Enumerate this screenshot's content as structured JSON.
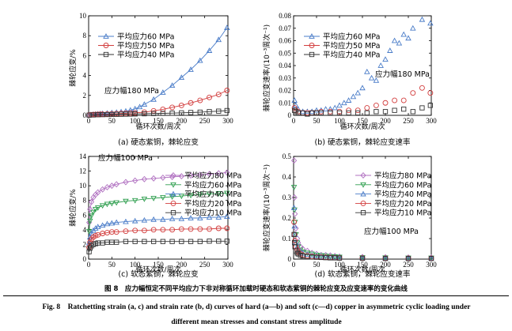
{
  "colors": {
    "blue": "#4a7cc8",
    "red": "#d23c3c",
    "black": "#333333",
    "purple": "#b070c0",
    "green": "#2e9e4e"
  },
  "figure": {
    "caption_cn": "图 8　应力幅恒定不同平均应力下非对称循环加载时硬态和软态紫铜的棘轮应变及应变速率的变化曲线",
    "caption_en_line1": "Fig. 8　Ratchetting strain (a, c) and strain rate (b, d) curves of hard (a—b) and soft (c—d) copper in asymmetric cyclic loading under",
    "caption_en_line2": "different mean stresses and constant stress amplitude"
  },
  "chart_data": [
    {
      "id": "a",
      "type": "line",
      "caption": "(a) 硬态紫铜，棘轮应变",
      "xlabel": "循环次数/周次",
      "ylabel": "棘轮应变/%",
      "xlim": [
        0,
        300
      ],
      "ylim": [
        0,
        10
      ],
      "xticks": [
        0,
        50,
        100,
        150,
        200,
        250,
        300
      ],
      "yticks": [
        0,
        2,
        4,
        6,
        8,
        10
      ],
      "annotation": "应力幅180 MPa",
      "series": [
        {
          "name": "平均应力60 MPa",
          "color": "blue",
          "marker": "triangle",
          "x": [
            1,
            5,
            10,
            15,
            20,
            25,
            30,
            40,
            50,
            60,
            70,
            80,
            90,
            100,
            110,
            120,
            140,
            160,
            180,
            200,
            220,
            240,
            260,
            280,
            298
          ],
          "y": [
            0.05,
            0.08,
            0.1,
            0.12,
            0.14,
            0.16,
            0.18,
            0.22,
            0.26,
            0.3,
            0.35,
            0.42,
            0.52,
            0.65,
            0.85,
            1.1,
            1.6,
            2.3,
            3.0,
            3.8,
            4.6,
            5.5,
            6.5,
            7.6,
            8.8
          ]
        },
        {
          "name": "平均应力50 MPa",
          "color": "red",
          "marker": "circle",
          "x": [
            1,
            5,
            10,
            15,
            20,
            25,
            30,
            40,
            50,
            60,
            70,
            80,
            90,
            100,
            120,
            140,
            160,
            180,
            200,
            220,
            240,
            260,
            280,
            298
          ],
          "y": [
            0.03,
            0.05,
            0.07,
            0.08,
            0.09,
            0.1,
            0.11,
            0.13,
            0.15,
            0.17,
            0.19,
            0.21,
            0.23,
            0.25,
            0.32,
            0.45,
            0.6,
            0.8,
            1.0,
            1.25,
            1.5,
            1.8,
            2.1,
            2.5
          ]
        },
        {
          "name": "平均应力40 MPa",
          "color": "black",
          "marker": "square",
          "x": [
            1,
            10,
            20,
            30,
            40,
            50,
            60,
            70,
            80,
            90,
            100,
            120,
            140,
            160,
            180,
            200,
            220,
            240,
            260,
            280,
            298
          ],
          "y": [
            0.02,
            0.04,
            0.06,
            0.07,
            0.08,
            0.09,
            0.1,
            0.11,
            0.12,
            0.13,
            0.14,
            0.16,
            0.18,
            0.2,
            0.22,
            0.25,
            0.28,
            0.32,
            0.37,
            0.42,
            0.48
          ]
        }
      ]
    },
    {
      "id": "b",
      "type": "scatter",
      "caption": "(b) 硬态紫铜，棘轮应变速率",
      "xlabel": "循环次数/周次",
      "ylabel": "棘轮应变速率/(10⁻³周次⁻¹)",
      "xlim": [
        0,
        300
      ],
      "ylim": [
        0,
        0.08
      ],
      "xticks": [
        0,
        50,
        100,
        150,
        200,
        250,
        300
      ],
      "annotation": "应力幅180 MPa",
      "series": [
        {
          "name": "平均应力60 MPa",
          "color": "blue",
          "marker": "triangle",
          "x": [
            2,
            5,
            10,
            20,
            30,
            40,
            50,
            60,
            70,
            80,
            90,
            100,
            110,
            120,
            130,
            140,
            150,
            160,
            170,
            180,
            190,
            200,
            210,
            220,
            230,
            240,
            250,
            260,
            280,
            298
          ],
          "y": [
            0.012,
            0.008,
            0.005,
            0.003,
            0.003,
            0.003,
            0.004,
            0.004,
            0.005,
            0.005,
            0.006,
            0.008,
            0.01,
            0.012,
            0.015,
            0.018,
            0.022,
            0.035,
            0.03,
            0.028,
            0.04,
            0.045,
            0.052,
            0.06,
            0.058,
            0.065,
            0.062,
            0.07,
            0.077,
            0.074
          ]
        },
        {
          "name": "平均应力50 MPa",
          "color": "red",
          "marker": "circle",
          "x": [
            2,
            5,
            10,
            20,
            30,
            40,
            50,
            60,
            80,
            100,
            120,
            140,
            160,
            180,
            200,
            220,
            240,
            260,
            280,
            298
          ],
          "y": [
            0.006,
            0.004,
            0.003,
            0.002,
            0.002,
            0.002,
            0.002,
            0.003,
            0.003,
            0.003,
            0.004,
            0.004,
            0.006,
            0.008,
            0.01,
            0.012,
            0.012,
            0.018,
            0.022,
            0.018
          ]
        },
        {
          "name": "平均应力40 MPa",
          "color": "black",
          "marker": "square",
          "x": [
            2,
            5,
            10,
            20,
            30,
            40,
            50,
            60,
            80,
            100,
            120,
            140,
            160,
            180,
            200,
            220,
            240,
            260,
            280,
            298
          ],
          "y": [
            0.004,
            0.003,
            0.002,
            0.002,
            0.001,
            0.002,
            0.002,
            0.002,
            0.002,
            0.002,
            0.002,
            0.002,
            0.002,
            0.003,
            0.003,
            0.004,
            0.005,
            0.003,
            0.006,
            0.008
          ]
        }
      ]
    },
    {
      "id": "c",
      "type": "line",
      "caption": "(c) 软态紫铜，棘轮应变",
      "xlabel": "循环次数/周次",
      "ylabel": "棘轮应变/%",
      "xlim": [
        0,
        300
      ],
      "ylim": [
        0,
        14
      ],
      "xticks": [
        0,
        50,
        100,
        150,
        200,
        250,
        300
      ],
      "yticks": [
        0,
        2,
        4,
        6,
        8,
        10,
        12,
        14
      ],
      "annotation": "应力幅100 MPa",
      "series": [
        {
          "name": "平均应力80 MPa",
          "color": "purple",
          "marker": "diamond",
          "x": [
            1,
            3,
            6,
            10,
            15,
            20,
            30,
            40,
            50,
            60,
            80,
            100,
            120,
            140,
            160,
            180,
            200,
            220,
            240,
            260,
            280,
            298
          ],
          "y": [
            5.0,
            6.8,
            7.8,
            8.4,
            8.8,
            9.1,
            9.5,
            9.8,
            10.0,
            10.2,
            10.5,
            10.7,
            10.9,
            11.0,
            11.1,
            11.2,
            11.3,
            11.4,
            11.5,
            11.6,
            11.7,
            11.8
          ]
        },
        {
          "name": "平均应力60 MPa",
          "color": "green",
          "marker": "triangle-down",
          "x": [
            1,
            3,
            6,
            10,
            15,
            20,
            30,
            40,
            50,
            60,
            80,
            100,
            120,
            140,
            160,
            180,
            200,
            220,
            240,
            260,
            280,
            298
          ],
          "y": [
            3.8,
            5.2,
            5.9,
            6.4,
            6.8,
            7.0,
            7.3,
            7.5,
            7.6,
            7.7,
            7.9,
            8.0,
            8.2,
            8.3,
            8.4,
            8.5,
            8.6,
            8.7,
            8.8,
            8.9,
            8.95,
            9.0
          ]
        },
        {
          "name": "平均应力40 MPa",
          "color": "blue",
          "marker": "triangle",
          "x": [
            1,
            3,
            6,
            10,
            15,
            20,
            30,
            40,
            50,
            60,
            80,
            100,
            120,
            140,
            160,
            180,
            200,
            220,
            240,
            260,
            280,
            298
          ],
          "y": [
            2.2,
            3.0,
            3.5,
            3.9,
            4.2,
            4.4,
            4.6,
            4.8,
            4.9,
            5.0,
            5.1,
            5.2,
            5.3,
            5.4,
            5.4,
            5.5,
            5.5,
            5.6,
            5.6,
            5.7,
            5.7,
            5.8
          ]
        },
        {
          "name": "平均应力20 MPa",
          "color": "red",
          "marker": "circle",
          "x": [
            1,
            3,
            6,
            10,
            15,
            20,
            30,
            40,
            50,
            60,
            80,
            100,
            120,
            140,
            160,
            180,
            200,
            220,
            240,
            260,
            280,
            298
          ],
          "y": [
            1.6,
            2.3,
            2.7,
            3.0,
            3.2,
            3.3,
            3.5,
            3.6,
            3.7,
            3.7,
            3.8,
            3.9,
            3.9,
            4.0,
            4.0,
            4.0,
            4.1,
            4.1,
            4.1,
            4.1,
            4.2,
            4.2
          ]
        },
        {
          "name": "平均应力10 MPa",
          "color": "black",
          "marker": "square",
          "x": [
            1,
            3,
            6,
            10,
            15,
            20,
            30,
            40,
            50,
            60,
            80,
            100,
            120,
            140,
            160,
            180,
            200,
            220,
            240,
            260,
            280,
            298
          ],
          "y": [
            1.0,
            1.5,
            1.8,
            2.0,
            2.1,
            2.2,
            2.2,
            2.3,
            2.3,
            2.3,
            2.4,
            2.4,
            2.4,
            2.4,
            2.4,
            2.4,
            2.4,
            2.4,
            2.4,
            2.45,
            2.45,
            2.45
          ]
        }
      ]
    },
    {
      "id": "d",
      "type": "scatter",
      "caption": "(d) 软态紫铜，棘轮应变速率",
      "xlabel": "循环次数/周次",
      "ylabel": "棘轮应变速率/(10⁻³周次⁻¹)",
      "xlim": [
        0,
        300
      ],
      "ylim": [
        0,
        0.5
      ],
      "xticks": [
        0,
        50,
        100,
        150,
        200,
        250,
        300
      ],
      "annotation": "应力幅100 MPa",
      "series": [
        {
          "name": "平均应力80 MPa",
          "color": "purple",
          "marker": "diamond",
          "x": [
            1,
            2,
            3,
            5,
            8,
            10,
            15,
            20,
            30,
            40,
            50,
            60,
            70,
            80,
            90,
            100,
            150,
            200,
            250,
            300
          ],
          "y": [
            0.48,
            0.3,
            0.22,
            0.15,
            0.1,
            0.08,
            0.06,
            0.05,
            0.04,
            0.03,
            0.025,
            0.02,
            0.02,
            0.018,
            0.015,
            0.012,
            0.01,
            0.009,
            0.008,
            0.008
          ]
        },
        {
          "name": "平均应力60 MPa",
          "color": "green",
          "marker": "triangle-down",
          "x": [
            1,
            2,
            3,
            5,
            8,
            10,
            15,
            20,
            30,
            40,
            50,
            60,
            70,
            80,
            90,
            100,
            150,
            200,
            250,
            300
          ],
          "y": [
            0.35,
            0.24,
            0.18,
            0.12,
            0.08,
            0.06,
            0.045,
            0.035,
            0.03,
            0.025,
            0.02,
            0.018,
            0.015,
            0.013,
            0.012,
            0.01,
            0.008,
            0.007,
            0.006,
            0.006
          ]
        },
        {
          "name": "平均应力40 MPa",
          "color": "blue",
          "marker": "triangle",
          "x": [
            1,
            2,
            3,
            5,
            8,
            10,
            15,
            20,
            30,
            40,
            50,
            60,
            70,
            80,
            90,
            100,
            150,
            200,
            250,
            300
          ],
          "y": [
            0.25,
            0.16,
            0.12,
            0.08,
            0.06,
            0.045,
            0.035,
            0.028,
            0.022,
            0.018,
            0.015,
            0.012,
            0.01,
            0.01,
            0.008,
            0.008,
            0.006,
            0.005,
            0.005,
            0.005
          ]
        },
        {
          "name": "平均应力20 MPa",
          "color": "red",
          "marker": "circle",
          "x": [
            1,
            2,
            3,
            5,
            8,
            10,
            15,
            20,
            30,
            40,
            50,
            60,
            70,
            80,
            90,
            100,
            150,
            200,
            250,
            300
          ],
          "y": [
            0.18,
            0.12,
            0.09,
            0.06,
            0.045,
            0.035,
            0.025,
            0.02,
            0.016,
            0.013,
            0.011,
            0.01,
            0.009,
            0.008,
            0.007,
            0.006,
            0.005,
            0.004,
            0.004,
            0.004
          ]
        },
        {
          "name": "平均应力10 MPa",
          "color": "black",
          "marker": "square",
          "x": [
            1,
            2,
            3,
            5,
            8,
            10,
            15,
            20,
            30,
            40,
            50,
            60,
            70,
            80,
            90,
            100,
            150,
            200,
            250,
            300
          ],
          "y": [
            0.12,
            0.08,
            0.06,
            0.04,
            0.03,
            0.025,
            0.018,
            0.015,
            0.012,
            0.01,
            0.009,
            0.008,
            0.007,
            0.006,
            0.006,
            0.005,
            0.004,
            0.003,
            0.003,
            0.003
          ]
        }
      ]
    }
  ]
}
